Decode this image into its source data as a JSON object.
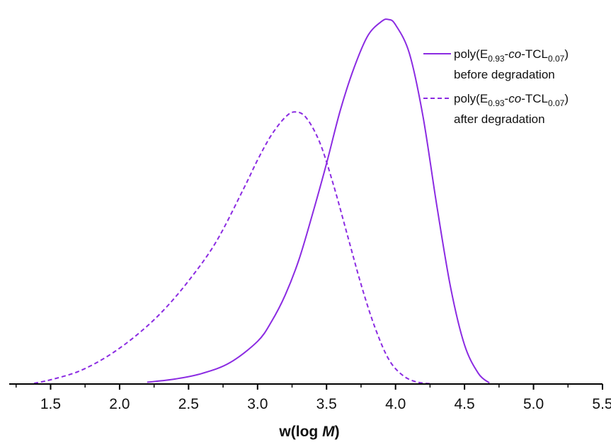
{
  "chart_data": {
    "type": "line",
    "title": "",
    "xlabel_main": "w(log ",
    "xlabel_italic": "M",
    "xlabel_close": ")",
    "ylabel": "",
    "xlim": [
      1.2,
      5.5
    ],
    "ylim": [
      0,
      1.06
    ],
    "xticks": [
      "1.5",
      "2.0",
      "2.5",
      "3.0",
      "3.5",
      "4.0",
      "4.5",
      "5.0",
      "5.5"
    ],
    "grid": false,
    "legend_position": "top-right",
    "series": [
      {
        "name_parts": {
          "pre": "poly(E",
          "sub1": "0.93",
          "dash1": "-",
          "italic": "co",
          "mid": "-TCL",
          "sub2": "0.07",
          "post": ")"
        },
        "name_line2": "before degradation",
        "color": "#8B2BE2",
        "dash": "solid",
        "x": [
          2.2,
          2.4,
          2.6,
          2.8,
          3.0,
          3.1,
          3.2,
          3.3,
          3.4,
          3.5,
          3.6,
          3.7,
          3.8,
          3.9,
          3.95,
          4.0,
          4.1,
          4.2,
          4.3,
          4.4,
          4.5,
          4.6,
          4.68
        ],
        "y": [
          0.005,
          0.014,
          0.03,
          0.06,
          0.12,
          0.175,
          0.25,
          0.35,
          0.48,
          0.62,
          0.77,
          0.89,
          0.98,
          1.02,
          1.025,
          1.01,
          0.93,
          0.75,
          0.5,
          0.27,
          0.11,
          0.03,
          0.003
        ]
      },
      {
        "name_parts": {
          "pre": "poly(E",
          "sub1": "0.93",
          "dash1": "-",
          "italic": "co",
          "mid": "-TCL",
          "sub2": "0.07",
          "post": ")"
        },
        "name_line2": "after degradation",
        "color": "#8B2BE2",
        "dash": "dashed",
        "x": [
          1.38,
          1.5,
          1.7,
          1.9,
          2.1,
          2.3,
          2.5,
          2.7,
          2.9,
          3.0,
          3.1,
          3.2,
          3.27,
          3.35,
          3.45,
          3.55,
          3.65,
          3.75,
          3.85,
          3.95,
          4.05,
          4.15,
          4.25
        ],
        "y": [
          0.002,
          0.012,
          0.035,
          0.075,
          0.13,
          0.2,
          0.29,
          0.4,
          0.55,
          0.63,
          0.7,
          0.75,
          0.765,
          0.75,
          0.68,
          0.56,
          0.42,
          0.28,
          0.16,
          0.07,
          0.025,
          0.006,
          0.001
        ]
      }
    ]
  }
}
